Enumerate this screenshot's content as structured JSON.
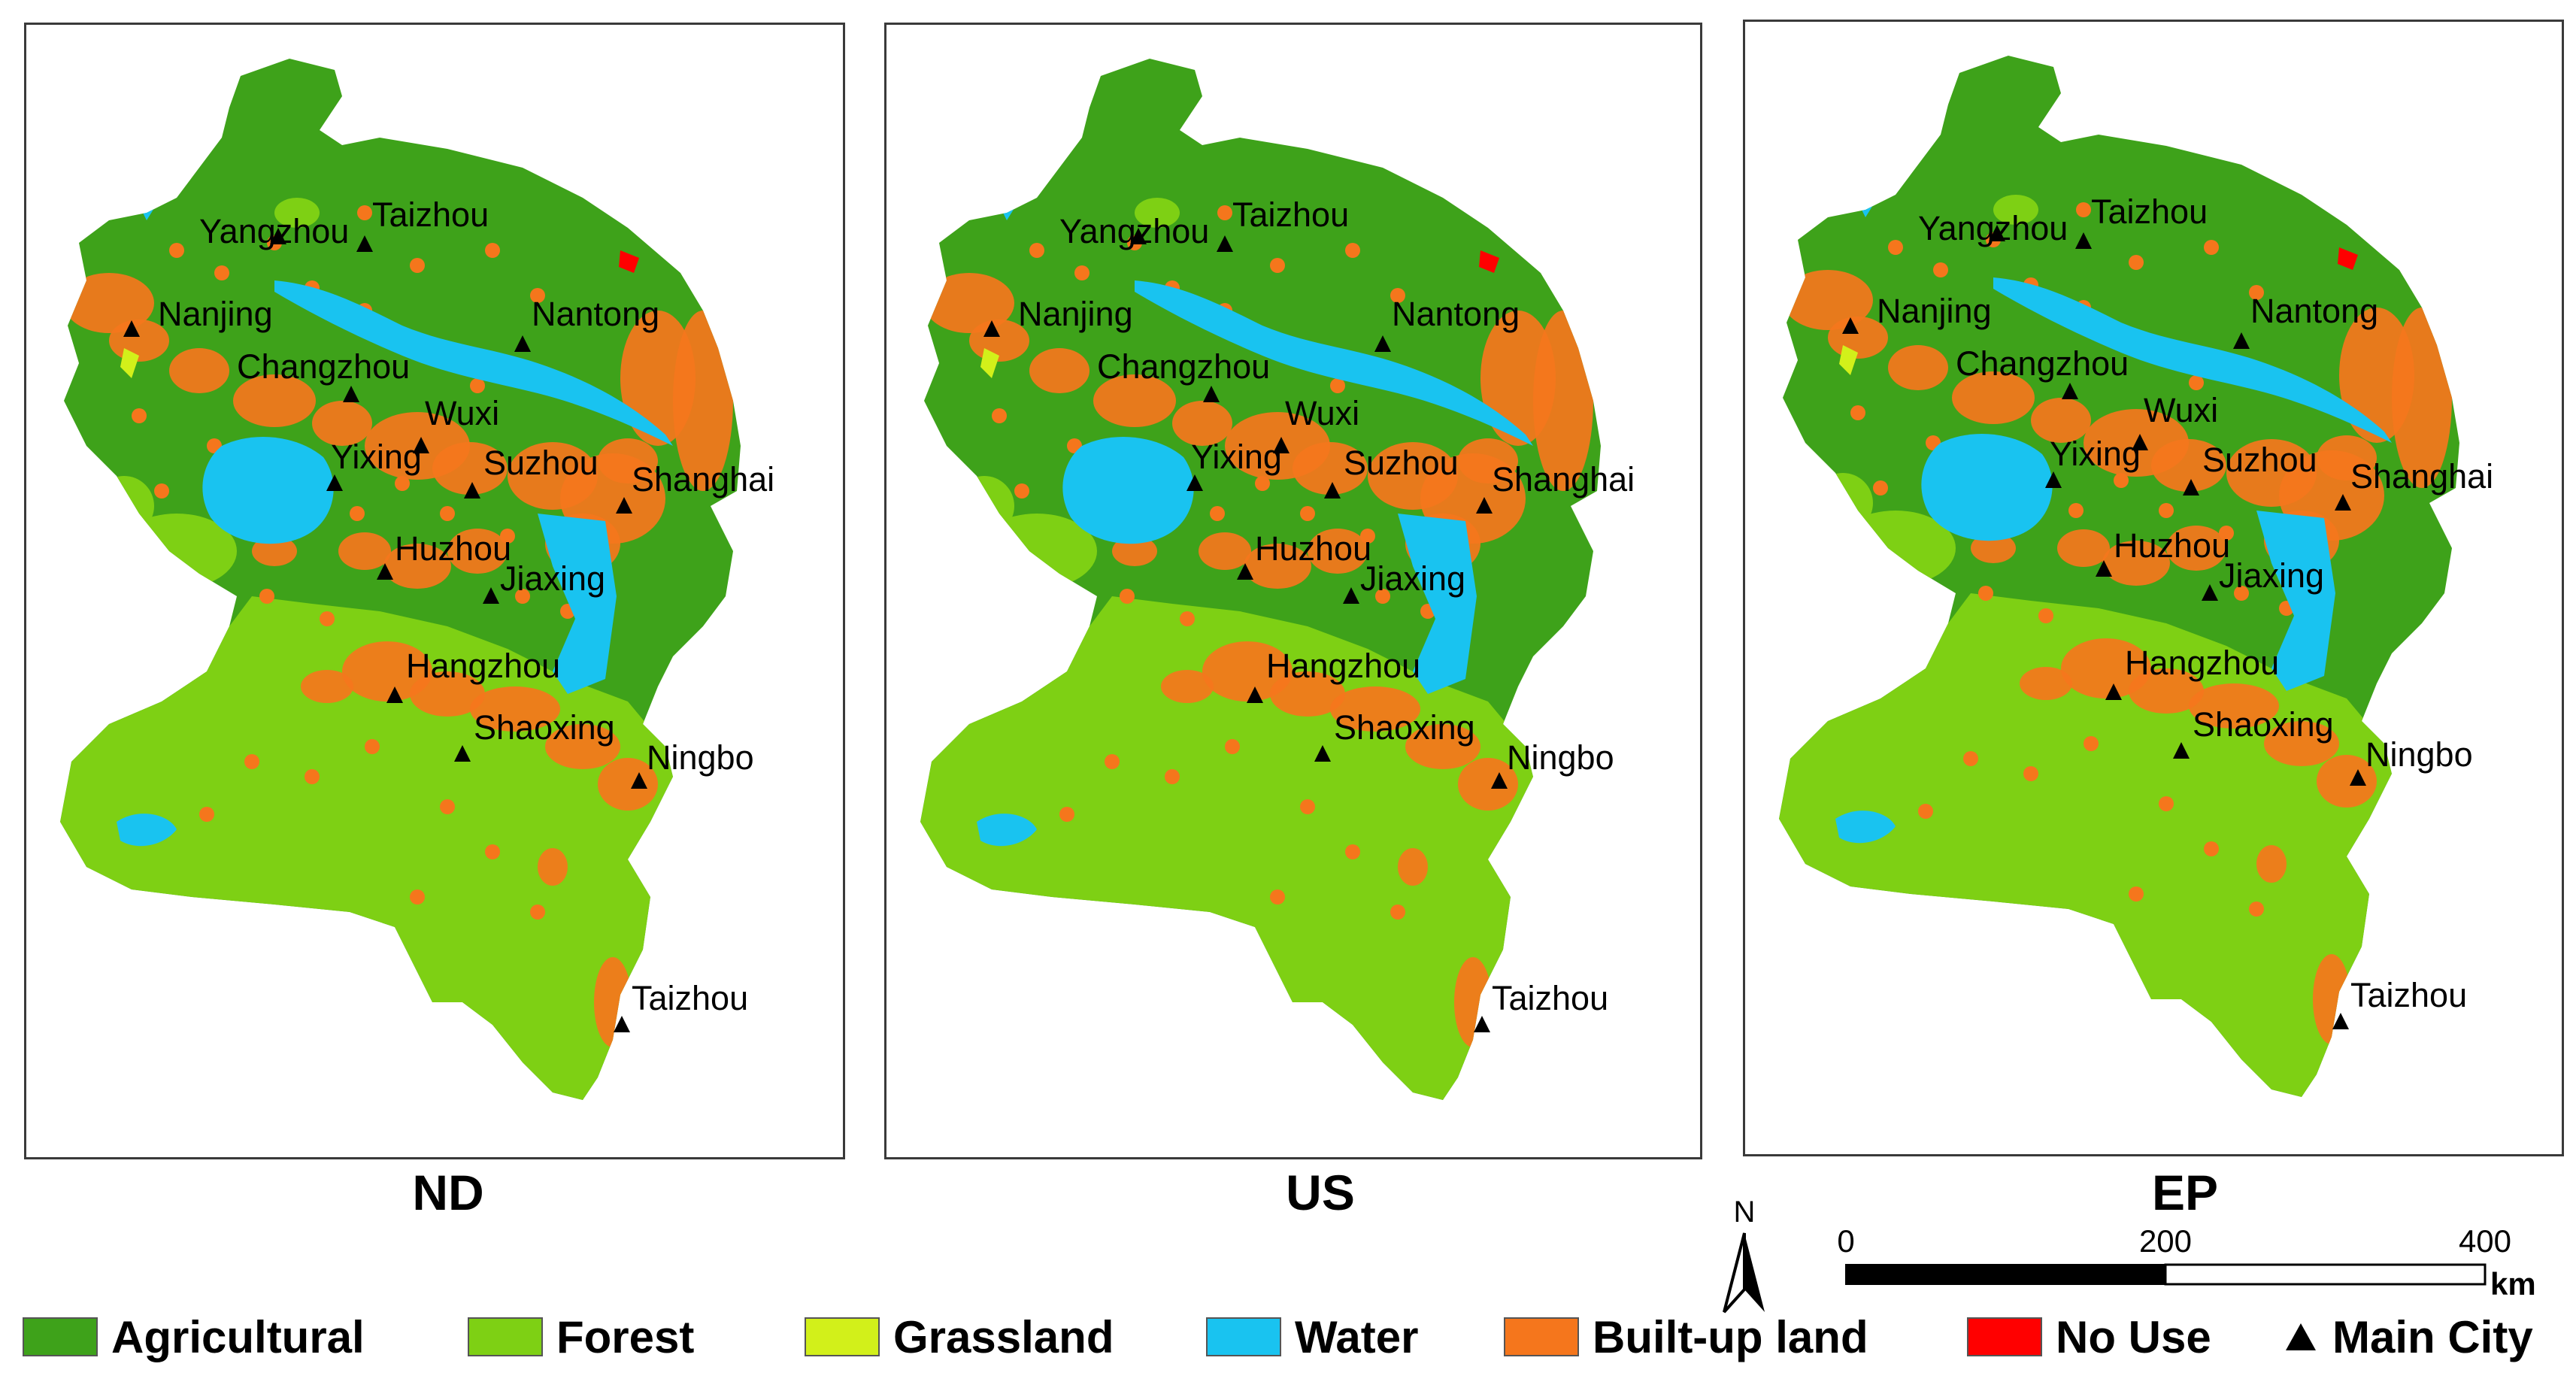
{
  "panels": [
    {
      "caption": "ND"
    },
    {
      "caption": "US"
    },
    {
      "caption": "EP"
    }
  ],
  "cities": [
    {
      "name": "Yangzhou"
    },
    {
      "name": "Taizhou"
    },
    {
      "name": "Nanjing"
    },
    {
      "name": "Nantong"
    },
    {
      "name": "Changzhou"
    },
    {
      "name": "Wuxi"
    },
    {
      "name": "Yixing"
    },
    {
      "name": "Suzhou"
    },
    {
      "name": "Shanghai"
    },
    {
      "name": "Huzhou"
    },
    {
      "name": "Jiaxing"
    },
    {
      "name": "Hangzhou"
    },
    {
      "name": "Shaoxing"
    },
    {
      "name": "Ningbo"
    },
    {
      "name": "Taizhou"
    }
  ],
  "legend": [
    {
      "label": "Agricultural",
      "color": "#3ea21a",
      "icon": "swatch"
    },
    {
      "label": "Forest",
      "color": "#7ed014",
      "icon": "swatch"
    },
    {
      "label": "Grassland",
      "color": "#d2f01a",
      "icon": "swatch"
    },
    {
      "label": "Water",
      "color": "#19c3f0",
      "icon": "swatch"
    },
    {
      "label": "Built-up land",
      "color": "#f5761c",
      "icon": "swatch"
    },
    {
      "label": "No Use",
      "color": "#ff0000",
      "icon": "swatch"
    },
    {
      "label": "Main City",
      "color": "#000000",
      "icon": "triangle-icon"
    }
  ],
  "north_arrow": {
    "label": "N"
  },
  "scale_bar": {
    "ticks": [
      "0",
      "200",
      "400"
    ],
    "unit": "km"
  }
}
